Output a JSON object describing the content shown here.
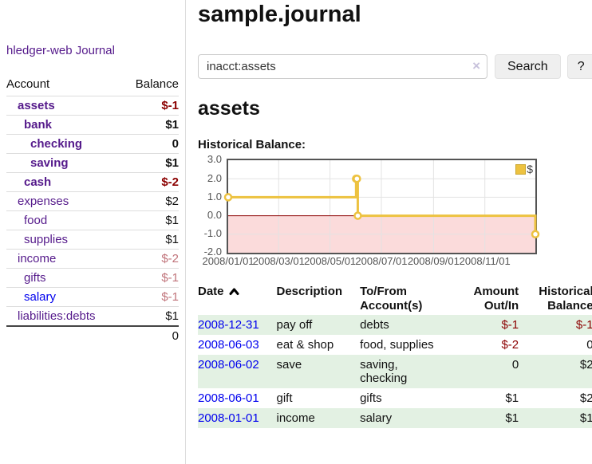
{
  "app": {
    "title": "hledger-web"
  },
  "sidebar": {
    "journal_link": "Journal",
    "headers": {
      "account": "Account",
      "balance": "Balance"
    },
    "accounts": [
      {
        "account": "assets",
        "balance": "$-1",
        "level": 1,
        "bold": true
      },
      {
        "account": "bank",
        "balance": "$1",
        "level": 2,
        "bold": true
      },
      {
        "account": "checking",
        "balance": "0",
        "level": 3,
        "bold": true
      },
      {
        "account": "saving",
        "balance": "$1",
        "level": 3,
        "bold": true
      },
      {
        "account": "cash",
        "balance": "$-2",
        "level": 2,
        "bold": true
      },
      {
        "account": "expenses",
        "balance": "$2",
        "level": 1,
        "bold": false
      },
      {
        "account": "food",
        "balance": "$1",
        "level": 2,
        "bold": false
      },
      {
        "account": "supplies",
        "balance": "$1",
        "level": 2,
        "bold": false
      },
      {
        "account": "income",
        "balance": "$-2",
        "level": 1,
        "bold": false
      },
      {
        "account": "gifts",
        "balance": "$-1",
        "level": 2,
        "bold": false
      },
      {
        "account": "salary",
        "balance": "$-1",
        "level": 2,
        "bold": false,
        "link": "blue"
      },
      {
        "account": "liabilities:debts",
        "balance": "$1",
        "level": 1,
        "bold": false
      }
    ],
    "total": "0"
  },
  "header": {
    "title": "sample.journal"
  },
  "search": {
    "value": "inacct:assets",
    "clear_icon": "×",
    "search_label": "Search",
    "help_label": "?"
  },
  "account_page": {
    "title": "assets",
    "chart_label": "Historical Balance:"
  },
  "chart_data": {
    "type": "line",
    "title": "Historical Balance:",
    "step": true,
    "series": [
      {
        "name": "$",
        "points": [
          [
            "2008-01-01",
            1
          ],
          [
            "2008-06-01",
            2
          ],
          [
            "2008-06-02",
            2
          ],
          [
            "2008-06-03",
            0
          ],
          [
            "2008-12-31",
            -1
          ]
        ]
      }
    ],
    "x_start": "2008-01-01",
    "x_span_days": 365,
    "xticks": [
      "2008/01/01",
      "2008/03/01",
      "2008/05/01",
      "2008/07/01",
      "2008/09/01",
      "2008/11/01"
    ],
    "yticks": [
      3.0,
      2.0,
      1.0,
      0.0,
      -1.0,
      -2.0
    ],
    "ylim": [
      -2,
      3
    ],
    "grid": true,
    "legend": {
      "position": "top-right",
      "label": "$"
    },
    "negative_region_shaded": true,
    "colors": {
      "series": "#edc240",
      "negative_fill": "#fbdbdb",
      "zero_line": "#8b0000",
      "gridline": "#e3e3e3",
      "border": "#545454"
    }
  },
  "register": {
    "columns": [
      "Date",
      "Description",
      "To/From Account(s)",
      "Amount Out/In",
      "Historical Balance"
    ],
    "sorted_by": "Date",
    "sort_direction": "ascending",
    "rows": [
      {
        "date": "2008-12-31",
        "description": "pay off",
        "accounts": "debts",
        "amount": "$-1",
        "balance": "$-1"
      },
      {
        "date": "2008-06-03",
        "description": "eat & shop",
        "accounts": "food, supplies",
        "amount": "$-2",
        "balance": "0"
      },
      {
        "date": "2008-06-02",
        "description": "save",
        "accounts": "saving, checking",
        "amount": "0",
        "balance": "$2"
      },
      {
        "date": "2008-06-01",
        "description": "gift",
        "accounts": "gifts",
        "amount": "$1",
        "balance": "$2"
      },
      {
        "date": "2008-01-01",
        "description": "income",
        "accounts": "salary",
        "amount": "$1",
        "balance": "$1"
      }
    ]
  },
  "colors": {
    "link_purple": "#551a8b",
    "link_blue": "#0000ee",
    "negative": "#8b0000",
    "negative_muted": "#c0737a",
    "row_stripe_green": "#e3f1e3",
    "button_bg": "#efefef"
  }
}
